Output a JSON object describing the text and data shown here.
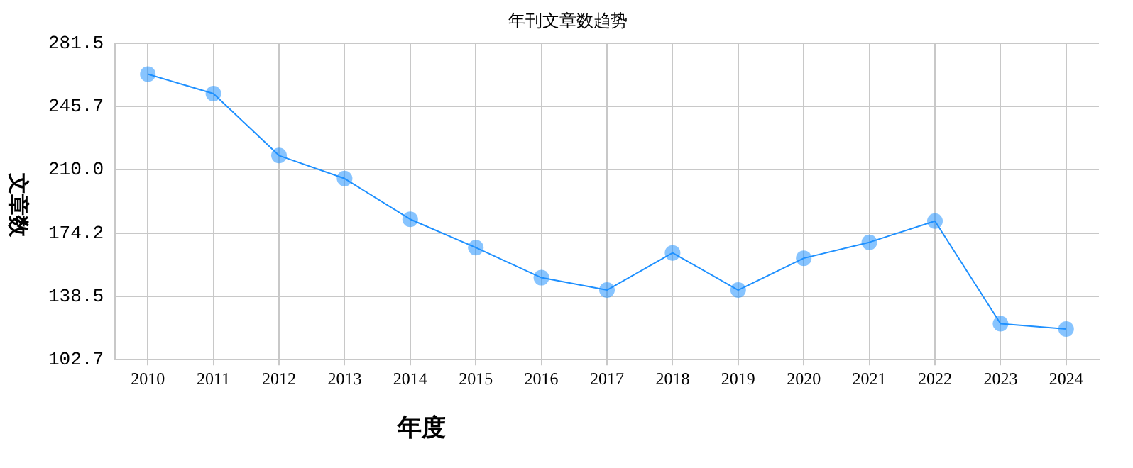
{
  "chart_data": {
    "type": "line",
    "title": "年刊文章数趋势",
    "xlabel": "年度",
    "ylabel": "文章数",
    "categories": [
      "2010",
      "2011",
      "2012",
      "2013",
      "2014",
      "2015",
      "2016",
      "2017",
      "2018",
      "2019",
      "2020",
      "2021",
      "2022",
      "2023",
      "2024"
    ],
    "series": [
      {
        "color": "#1e90ff",
        "values": [
          264,
          253,
          218,
          205,
          182,
          166,
          149,
          142,
          163,
          142,
          160,
          169,
          181,
          123,
          120
        ]
      }
    ],
    "ylim": [
      102.7,
      281.5
    ],
    "yticks": [
      {
        "value": 102.7,
        "label": "102.7"
      },
      {
        "value": 138.5,
        "label": "138.5"
      },
      {
        "value": 174.2,
        "label": "174.2"
      },
      {
        "value": 210.0,
        "label": "210.0"
      },
      {
        "value": 245.7,
        "label": "245.7"
      },
      {
        "value": 281.5,
        "label": "281.5"
      }
    ],
    "grid": true,
    "legend": false,
    "marker": "circle",
    "line_style": "solid"
  }
}
